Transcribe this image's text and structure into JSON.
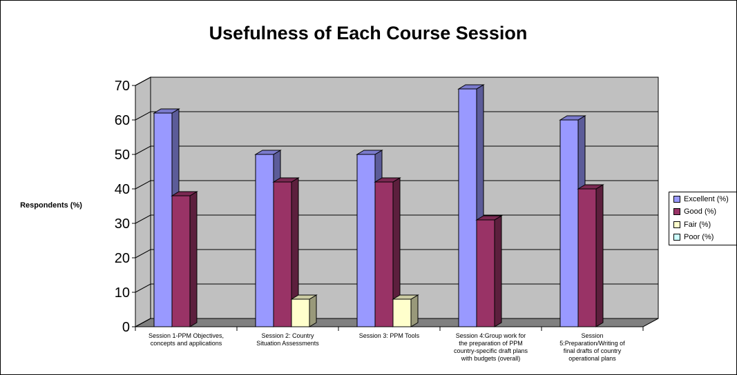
{
  "chart_data": {
    "type": "bar",
    "title": "Usefulness of Each Course Session",
    "ylabel": "Respondents (%)",
    "xlabel": "",
    "ylim": [
      0,
      70
    ],
    "yticks": [
      0,
      10,
      20,
      30,
      40,
      50,
      60,
      70
    ],
    "grid": true,
    "legend_position": "right",
    "categories": [
      [
        "Session 1-PPM Objectives,",
        "concepts and applications"
      ],
      [
        "Session 2: Country",
        "Situation Assessments"
      ],
      [
        "Session 3: PPM Tools"
      ],
      [
        "Session 4:Group work for",
        "the preparation of PPM",
        "country-specific draft plans",
        "with budgets (overall)"
      ],
      [
        "Session",
        "5:Preparation/Writing of",
        "final drafts of country",
        "operational plans"
      ]
    ],
    "series": [
      {
        "name": "Excellent (%)",
        "color": "#9999ff",
        "values": [
          62,
          50,
          50,
          69,
          60
        ]
      },
      {
        "name": "Good (%)",
        "color": "#993366",
        "values": [
          38,
          42,
          42,
          31,
          40
        ]
      },
      {
        "name": "Fair (%)",
        "color": "#ffffcc",
        "values": [
          0,
          8,
          8,
          0,
          0
        ]
      },
      {
        "name": "Poor (%)",
        "color": "#ccffff",
        "values": [
          0,
          0,
          0,
          0,
          0
        ]
      }
    ]
  }
}
